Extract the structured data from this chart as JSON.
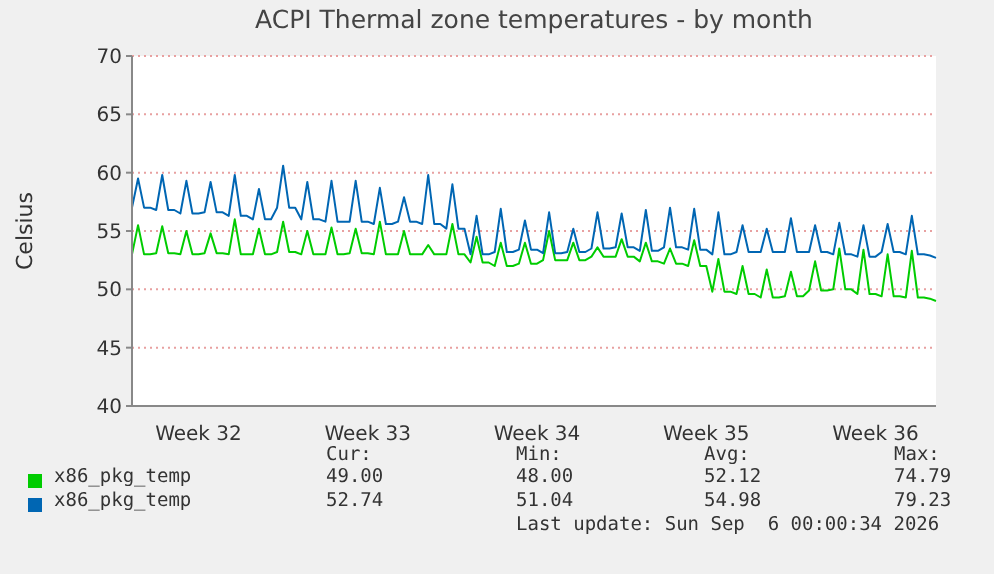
{
  "chart_data": {
    "type": "line",
    "title": "ACPI Thermal zone temperatures - by month",
    "ylabel": "Celsius",
    "categories": [
      null,
      null,
      null,
      null,
      null,
      null,
      null,
      null,
      null,
      null,
      null,
      "Week 32",
      null,
      null,
      null,
      null,
      null,
      null,
      null,
      null,
      null,
      null,
      null,
      null,
      null,
      null,
      null,
      null,
      null,
      null,
      null,
      null,
      null,
      null,
      null,
      null,
      null,
      null,
      null,
      "Week 33",
      null,
      null,
      null,
      null,
      null,
      null,
      null,
      null,
      null,
      null,
      null,
      null,
      null,
      null,
      null,
      null,
      null,
      null,
      null,
      null,
      null,
      null,
      null,
      null,
      null,
      null,
      null,
      "Week 34",
      null,
      null,
      null,
      null,
      null,
      null,
      null,
      null,
      null,
      null,
      null,
      null,
      null,
      null,
      null,
      null,
      null,
      null,
      null,
      null,
      null,
      null,
      null,
      null,
      null,
      null,
      null,
      "Week 35",
      null,
      null,
      null,
      null,
      null,
      null,
      null,
      null,
      null,
      null,
      null,
      null,
      null,
      null,
      null,
      null,
      null,
      null,
      null,
      null,
      null,
      null,
      null,
      null,
      null,
      null,
      null,
      "Week 36",
      null,
      null,
      null,
      null,
      null,
      null,
      null,
      null,
      null,
      null
    ],
    "series": [
      {
        "name": "x86_pkg_temp",
        "color": "#00cc00",
        "values": [
          53,
          55.5,
          53,
          53,
          53.1,
          55.4,
          53.1,
          53.1,
          53,
          55,
          53,
          53,
          53.1,
          54.8,
          53.1,
          53.1,
          53,
          56,
          53,
          53,
          53,
          55.2,
          53,
          53,
          53.2,
          55.8,
          53.2,
          53.2,
          53,
          55,
          53,
          53,
          53,
          55.3,
          53,
          53,
          53.1,
          55.2,
          53.1,
          53.1,
          53,
          55.8,
          53,
          53,
          53,
          55,
          53,
          53,
          53,
          53.8,
          53,
          53,
          53,
          55.6,
          53,
          53,
          52.3,
          54.5,
          52.3,
          52.3,
          52,
          54,
          52,
          52,
          52.2,
          54,
          52.2,
          52.2,
          52.5,
          55,
          52.5,
          52.5,
          52.5,
          54,
          52.5,
          52.5,
          52.8,
          53.6,
          52.8,
          52.8,
          52.8,
          54.3,
          52.8,
          52.8,
          52.4,
          54,
          52.4,
          52.4,
          52.2,
          53.5,
          52.2,
          52.2,
          52,
          54.2,
          52,
          52,
          49.8,
          52.6,
          49.8,
          49.8,
          49.6,
          52,
          49.6,
          49.6,
          49.3,
          51.7,
          49.3,
          49.3,
          49.4,
          51.5,
          49.4,
          49.4,
          49.9,
          52.4,
          49.9,
          49.9,
          50,
          53.5,
          50,
          50,
          49.6,
          53.4,
          49.6,
          49.6,
          49.4,
          53,
          49.4,
          49.4,
          49.3,
          53.3,
          49.3,
          49.3,
          49.2,
          49
        ]
      },
      {
        "name": "x86_pkg_temp",
        "color": "#0066b3",
        "values": [
          57,
          59.5,
          57,
          57,
          56.8,
          59.8,
          56.8,
          56.8,
          56.5,
          59.3,
          56.5,
          56.5,
          56.6,
          59.2,
          56.6,
          56.6,
          56.3,
          59.8,
          56.3,
          56.3,
          56,
          58.6,
          56,
          56,
          57,
          60.6,
          57,
          57,
          56,
          59.2,
          56,
          56,
          55.8,
          59.3,
          55.8,
          55.8,
          55.8,
          59.3,
          55.8,
          55.8,
          55.6,
          58.7,
          55.6,
          55.6,
          55.8,
          57.9,
          55.8,
          55.8,
          55.6,
          59.8,
          55.6,
          55.6,
          55.2,
          59,
          55.2,
          55.2,
          53,
          56.3,
          53,
          53,
          53.2,
          56.9,
          53.2,
          53.2,
          53.4,
          55.9,
          53.4,
          53.4,
          53.1,
          56.6,
          53.1,
          53.1,
          53.2,
          55.2,
          53.2,
          53.2,
          53.5,
          56.6,
          53.5,
          53.5,
          53.6,
          56.5,
          53.6,
          53.6,
          53.3,
          56.8,
          53.3,
          53.3,
          53.6,
          57,
          53.6,
          53.6,
          53.4,
          56.9,
          53.4,
          53.4,
          53,
          56.6,
          53,
          53,
          53.2,
          55.5,
          53.2,
          53.2,
          53.2,
          55.2,
          53.2,
          53.2,
          53.2,
          56.1,
          53.2,
          53.2,
          53.2,
          55.5,
          53.2,
          53.2,
          53,
          55.7,
          53,
          53,
          52.8,
          55.5,
          52.8,
          52.8,
          53.2,
          55.6,
          53.2,
          53.2,
          53,
          56.3,
          53,
          53,
          52.9,
          52.7
        ]
      }
    ],
    "ylim": [
      40,
      70
    ],
    "yticks": [
      40,
      45,
      50,
      55,
      60,
      65,
      70
    ],
    "grid": "y",
    "legend": "bottom",
    "marker": "none",
    "line_style": "solid",
    "annotations": [
      "Cur:",
      "Min:",
      "Avg:",
      "Max:",
      "49.00",
      "48.00",
      "52.12",
      "74.79",
      "52.74",
      "51.04",
      "54.98",
      "79.23",
      "Last update: Sun Sep  6 00:00:34 2026"
    ]
  }
}
